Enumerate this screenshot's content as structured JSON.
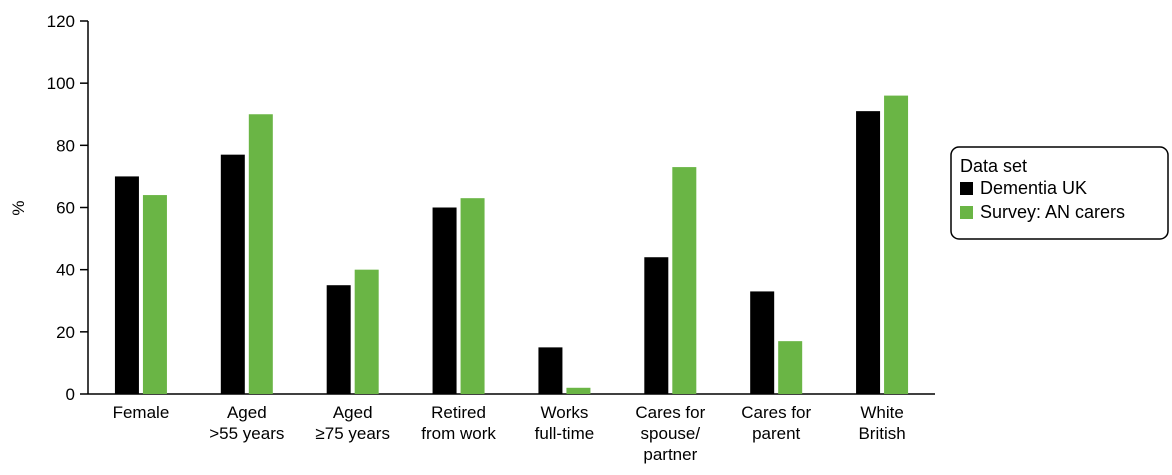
{
  "chart_data": {
    "type": "bar",
    "title": "",
    "ylabel": "%",
    "xlabel": "",
    "ylim": [
      0,
      120
    ],
    "yticks": [
      0,
      20,
      40,
      60,
      80,
      100,
      120
    ],
    "categories": [
      [
        "Female"
      ],
      [
        "Aged",
        ">55 years"
      ],
      [
        "Aged",
        "≥75 years"
      ],
      [
        "Retired",
        "from work"
      ],
      [
        "Works",
        "full-time"
      ],
      [
        "Cares for",
        "spouse/",
        "partner"
      ],
      [
        "Cares for",
        "parent"
      ],
      [
        "White",
        "British"
      ]
    ],
    "legend": {
      "title": "Data set",
      "placement": "right"
    },
    "series": [
      {
        "name": "Dementia UK",
        "color": "#000000",
        "values": [
          70,
          77,
          35,
          60,
          15,
          44,
          33,
          91
        ]
      },
      {
        "name": "Survey: AN carers",
        "color": "#6ab545",
        "values": [
          64,
          90,
          40,
          63,
          2,
          73,
          17,
          96
        ]
      }
    ]
  }
}
